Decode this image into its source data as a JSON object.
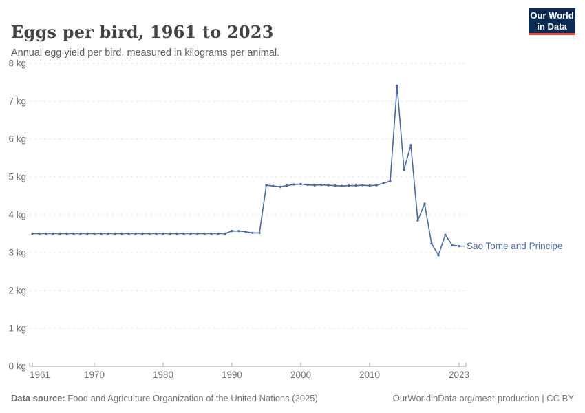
{
  "header": {
    "title": "Eggs per bird, 1961 to 2023",
    "subtitle": "Annual egg yield per bird, measured in kilograms per animal.",
    "logo": {
      "line1": "Our World",
      "line2": "in Data"
    }
  },
  "footer": {
    "source_label": "Data source:",
    "source_text": " Food and Agriculture Organization of the United Nations (2025)",
    "attribution": "OurWorldinData.org/meat-production | CC BY"
  },
  "colors": {
    "line": "#4c6a9c",
    "end_label": "#4c6a9c",
    "grid": "#e2e2e2",
    "axis": "#a3a3a3",
    "tick_text": "#6e6e6e",
    "logo_bg": "#0c2b52",
    "logo_red": "#e8442e"
  },
  "chart_data": {
    "type": "line",
    "title": "Eggs per bird, 1961 to 2023",
    "subtitle": "Annual egg yield per bird, measured in kilograms per animal.",
    "xlabel": "",
    "ylabel": "kg",
    "xlim": [
      1961,
      2023
    ],
    "ylim": [
      0,
      8
    ],
    "x_ticks": [
      1961,
      1970,
      1980,
      1990,
      2000,
      2010,
      2023
    ],
    "y_ticks": [
      0,
      1,
      2,
      3,
      4,
      5,
      6,
      7,
      8
    ],
    "y_tick_suffix": " kg",
    "grid": "horizontal-dashed",
    "legend_position": "end-of-line-label",
    "series": [
      {
        "name": "Sao Tome and Principe",
        "color": "#4c6a9c",
        "x": [
          1961,
          1962,
          1963,
          1964,
          1965,
          1966,
          1967,
          1968,
          1969,
          1970,
          1971,
          1972,
          1973,
          1974,
          1975,
          1976,
          1977,
          1978,
          1979,
          1980,
          1981,
          1982,
          1983,
          1984,
          1985,
          1986,
          1987,
          1988,
          1989,
          1990,
          1991,
          1992,
          1993,
          1994,
          1995,
          1996,
          1997,
          1998,
          1999,
          2000,
          2001,
          2002,
          2003,
          2004,
          2005,
          2006,
          2007,
          2008,
          2009,
          2010,
          2011,
          2012,
          2013,
          2014,
          2015,
          2016,
          2017,
          2018,
          2019,
          2020,
          2021,
          2022,
          2023
        ],
        "values": [
          3.5,
          3.5,
          3.5,
          3.5,
          3.5,
          3.5,
          3.5,
          3.5,
          3.5,
          3.5,
          3.5,
          3.5,
          3.5,
          3.5,
          3.5,
          3.5,
          3.5,
          3.5,
          3.5,
          3.5,
          3.5,
          3.5,
          3.5,
          3.5,
          3.5,
          3.5,
          3.5,
          3.5,
          3.5,
          3.57,
          3.57,
          3.55,
          3.52,
          3.52,
          4.78,
          4.76,
          4.74,
          4.77,
          4.8,
          4.81,
          4.79,
          4.78,
          4.79,
          4.78,
          4.77,
          4.76,
          4.77,
          4.77,
          4.78,
          4.77,
          4.78,
          4.83,
          4.89,
          7.41,
          5.19,
          5.84,
          3.85,
          4.29,
          3.24,
          2.93,
          3.47,
          3.2,
          3.17
        ]
      }
    ]
  }
}
